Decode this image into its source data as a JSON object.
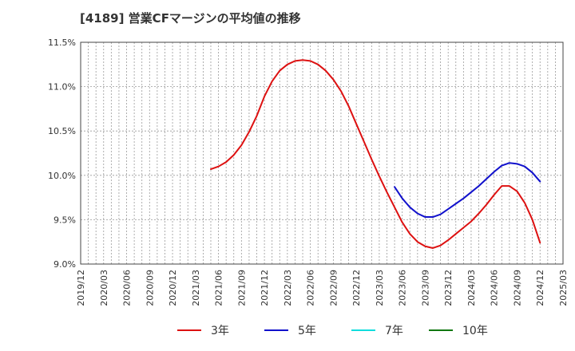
{
  "chart_data": {
    "type": "line",
    "title": "[4189]  営業CFマージンの平均値の推移",
    "xlabel": "",
    "ylabel": "",
    "ylim": [
      9.0,
      11.5
    ],
    "ytick_values": [
      9.0,
      9.5,
      10.0,
      10.5,
      11.0,
      11.5
    ],
    "ytick_labels": [
      "9.0%",
      "9.5%",
      "10.0%",
      "10.5%",
      "11.0%",
      "11.5%"
    ],
    "x_tick_labels": [
      "2019/12",
      "2020/03",
      "2020/06",
      "2020/09",
      "2020/12",
      "2021/03",
      "2021/06",
      "2021/09",
      "2021/12",
      "2022/03",
      "2022/06",
      "2022/09",
      "2022/12",
      "2023/03",
      "2023/06",
      "2023/09",
      "2023/12",
      "2024/03",
      "2024/06",
      "2024/09",
      "2024/12",
      "2025/03"
    ],
    "grid": true,
    "legend_position": "bottom",
    "series": [
      {
        "name": "3年",
        "color": "#dd1111",
        "x": [
          "2021/05",
          "2021/06",
          "2021/07",
          "2021/08",
          "2021/09",
          "2021/10",
          "2021/11",
          "2021/12",
          "2022/01",
          "2022/02",
          "2022/03",
          "2022/04",
          "2022/05",
          "2022/06",
          "2022/07",
          "2022/08",
          "2022/09",
          "2022/10",
          "2022/11",
          "2022/12",
          "2023/01",
          "2023/02",
          "2023/03",
          "2023/04",
          "2023/05",
          "2023/06",
          "2023/07",
          "2023/08",
          "2023/09",
          "2023/10",
          "2023/11",
          "2023/12",
          "2024/01",
          "2024/02",
          "2024/03",
          "2024/04",
          "2024/05",
          "2024/06",
          "2024/07",
          "2024/08",
          "2024/09",
          "2024/10",
          "2024/11",
          "2024/12"
        ],
        "values": [
          10.07,
          10.1,
          10.15,
          10.23,
          10.34,
          10.49,
          10.67,
          10.89,
          11.06,
          11.18,
          11.25,
          11.29,
          11.3,
          11.29,
          11.25,
          11.18,
          11.08,
          10.95,
          10.78,
          10.58,
          10.38,
          10.18,
          9.99,
          9.81,
          9.64,
          9.47,
          9.34,
          9.25,
          9.2,
          9.18,
          9.21,
          9.27,
          9.34,
          9.41,
          9.48,
          9.57,
          9.67,
          9.78,
          9.88,
          9.88,
          9.82,
          9.69,
          9.5,
          9.24
        ]
      },
      {
        "name": "5年",
        "color": "#1111cc",
        "x": [
          "2023/05",
          "2023/06",
          "2023/07",
          "2023/08",
          "2023/09",
          "2023/10",
          "2023/11",
          "2023/12",
          "2024/01",
          "2024/02",
          "2024/03",
          "2024/04",
          "2024/05",
          "2024/06",
          "2024/07",
          "2024/08",
          "2024/09",
          "2024/10",
          "2024/11",
          "2024/12"
        ],
        "values": [
          9.87,
          9.74,
          9.64,
          9.57,
          9.53,
          9.53,
          9.56,
          9.62,
          9.68,
          9.74,
          9.81,
          9.88,
          9.96,
          10.04,
          10.11,
          10.14,
          10.13,
          10.1,
          10.03,
          9.93
        ]
      },
      {
        "name": "7年",
        "color": "#11dddd",
        "x": [],
        "values": []
      },
      {
        "name": "10年",
        "color": "#117711",
        "x": [],
        "values": []
      }
    ]
  }
}
